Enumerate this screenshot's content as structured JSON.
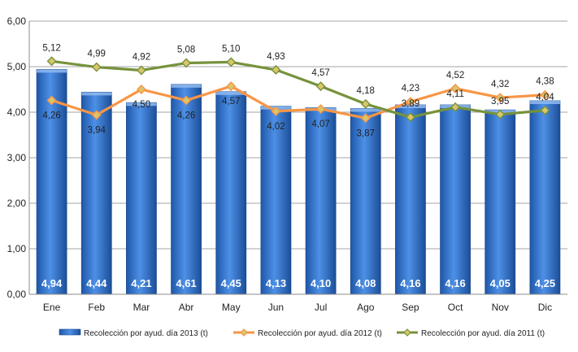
{
  "chart_data": {
    "type": "bar",
    "categories": [
      "Ene",
      "Feb",
      "Mar",
      "Abr",
      "May",
      "Jun",
      "Jul",
      "Ago",
      "Sep",
      "Oct",
      "Nov",
      "Dic"
    ],
    "ylim": [
      0,
      6
    ],
    "yticks": [
      "0,00",
      "1,00",
      "2,00",
      "3,00",
      "4,00",
      "5,00",
      "6,00"
    ],
    "grid": true,
    "legend_position": "bottom",
    "series": [
      {
        "name": "Recolección por ayud. día 2013 (t)",
        "type": "bar",
        "values": [
          4.94,
          4.44,
          4.21,
          4.61,
          4.45,
          4.13,
          4.1,
          4.08,
          4.16,
          4.16,
          4.05,
          4.25
        ],
        "labels": [
          "4,94",
          "4,44",
          "4,21",
          "4,61",
          "4,45",
          "4,13",
          "4,10",
          "4,08",
          "4,16",
          "4,16",
          "4,05",
          "4,25"
        ],
        "color": "#3c7fd6"
      },
      {
        "name": "Recolección por ayud. día 2012 (t)",
        "type": "line",
        "values": [
          4.26,
          3.94,
          4.5,
          4.26,
          4.57,
          4.02,
          4.07,
          3.87,
          4.23,
          4.52,
          4.32,
          4.38
        ],
        "labels": [
          "4,26",
          "3,94",
          "4,50",
          "4,26",
          "4,57",
          "4,02",
          "4,07",
          "3,87",
          "4,23",
          "4,52",
          "4,32",
          "4,38"
        ],
        "color": "#f79646"
      },
      {
        "name": "Recolección por ayud. día 2011 (t)",
        "type": "line",
        "values": [
          5.12,
          4.99,
          4.92,
          5.08,
          5.1,
          4.93,
          4.57,
          4.18,
          3.89,
          4.11,
          3.95,
          4.04
        ],
        "labels": [
          "5,12",
          "4,99",
          "4,92",
          "5,08",
          "5,10",
          "4,93",
          "4,57",
          "4,18",
          "3,89",
          "4,11",
          "3,95",
          "4,04"
        ],
        "color": "#76923c"
      }
    ]
  }
}
